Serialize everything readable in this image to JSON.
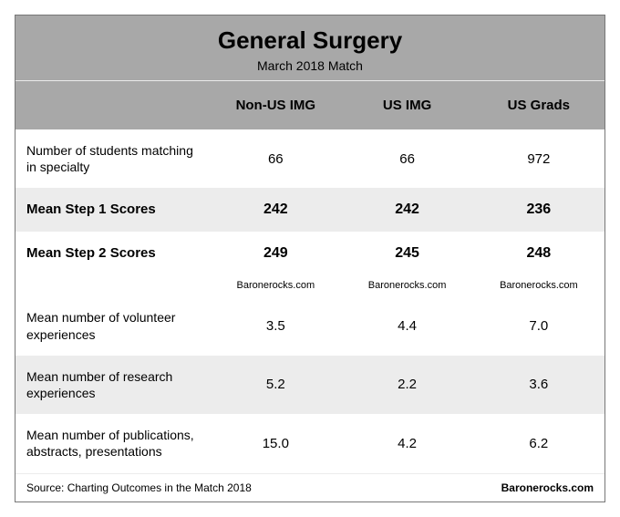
{
  "title": "General Surgery",
  "subtitle": "March 2018 Match",
  "columns": [
    "Non-US IMG",
    "US IMG",
    "US Grads"
  ],
  "rows": [
    {
      "label": "Number of students matching in specialty",
      "values": [
        "66",
        "66",
        "972"
      ],
      "bold": false,
      "alt": false
    },
    {
      "label": "Mean Step 1 Scores",
      "values": [
        "242",
        "242",
        "236"
      ],
      "bold": true,
      "alt": true
    },
    {
      "label": "Mean Step 2 Scores",
      "values": [
        "249",
        "245",
        "248"
      ],
      "bold": true,
      "alt": false
    },
    {
      "label": "",
      "values": [
        "Baronerocks.com",
        "Baronerocks.com",
        "Baronerocks.com"
      ],
      "site": true,
      "alt": true
    },
    {
      "label": "Mean number of volunteer experiences",
      "values": [
        "3.5",
        "4.4",
        "7.0"
      ],
      "bold": false,
      "alt": false
    },
    {
      "label": "Mean number of research experiences",
      "values": [
        "5.2",
        "2.2",
        "3.6"
      ],
      "bold": false,
      "alt": true
    },
    {
      "label": "Mean number of publications, abstracts, presentations",
      "values": [
        "15.0",
        "4.2",
        "6.2"
      ],
      "bold": false,
      "alt": false
    }
  ],
  "footer_left": "Source: Charting Outcomes in the Match 2018",
  "footer_right": "Baronerocks.com",
  "colors": {
    "header_bg": "#a8a8a8",
    "alt_row_bg": "#ececec",
    "border": "#777777",
    "text": "#000000",
    "background": "#ffffff"
  },
  "fonts": {
    "family": "Arial",
    "title_size": 26,
    "subtitle_size": 14,
    "header_size": 15,
    "cell_size": 15,
    "footer_size": 12
  }
}
